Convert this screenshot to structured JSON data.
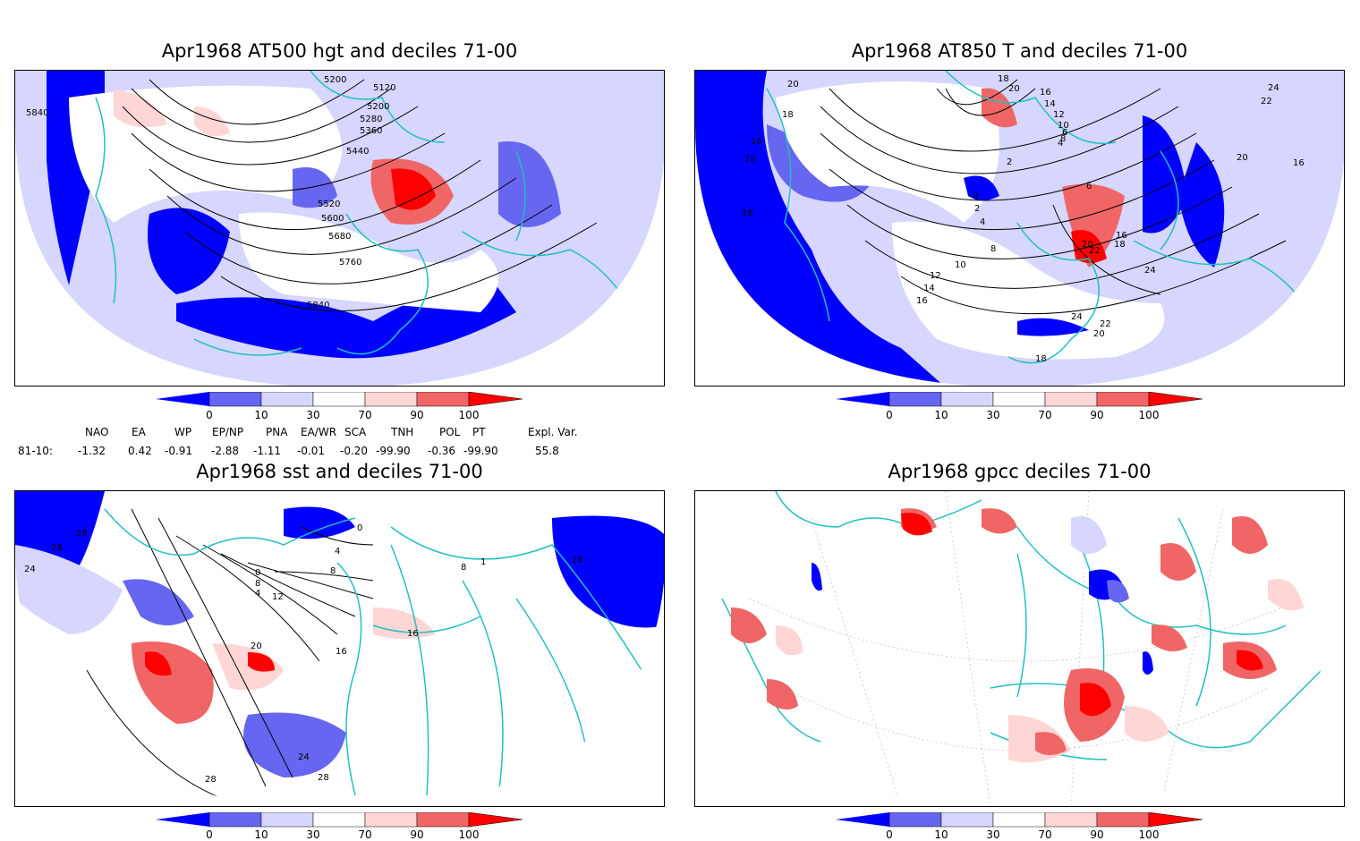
{
  "panels": [
    {
      "id": "hgt",
      "title": "Apr1968 AT500 hgt and deciles 71-00",
      "contour_labels": [
        "5840",
        "5200",
        "5120",
        "5200",
        "5280",
        "5360",
        "5440",
        "5520",
        "5600",
        "5680",
        "5760",
        "5840"
      ]
    },
    {
      "id": "t850",
      "title": "Apr1968 AT850 T and deciles 71-00",
      "contour_labels": [
        "20",
        "18",
        "16",
        "18",
        "16",
        "18",
        "20",
        "16",
        "14",
        "12",
        "10",
        "8",
        "6",
        "4",
        "2",
        "0",
        "2",
        "4",
        "6",
        "8",
        "10",
        "12",
        "14",
        "16",
        "16",
        "18",
        "20",
        "22",
        "24",
        "20",
        "22",
        "24",
        "18",
        "16",
        "20",
        "22",
        "24"
      ]
    },
    {
      "id": "sst",
      "title": "Apr1968 sst and deciles 71-00",
      "contour_labels": [
        "28",
        "24",
        "28",
        "0",
        "4",
        "8",
        "0",
        "4",
        "8",
        "12",
        "16",
        "20",
        "24",
        "28",
        "28",
        "1",
        "8",
        "16",
        "28"
      ]
    },
    {
      "id": "gpcc",
      "title": "Apr1968 gpcc deciles 71-00",
      "contour_labels": []
    }
  ],
  "colorbar": {
    "tick_labels": [
      "0",
      "10",
      "30",
      "70",
      "90",
      "100"
    ],
    "colors": [
      "#0000ff",
      "#6666f0",
      "#d6d6ff",
      "#ffffff",
      "#ffd6d6",
      "#f06666",
      "#ff0000"
    ]
  },
  "indices": {
    "row_label": "81-10:",
    "headers": [
      "NAO",
      "EA",
      "WP",
      "EP/NP",
      "PNA",
      "EA/WR",
      "SCA",
      "TNH",
      "POL",
      "PT",
      "Expl. Var."
    ],
    "values": [
      "-1.32",
      "0.42",
      "-0.91",
      "-2.88",
      "-1.11",
      "-0.01",
      "-0.20",
      "-99.90",
      "-0.36",
      "-99.90",
      "55.8"
    ]
  },
  "colors": {
    "coastline": "#20c0c0",
    "contour": "#000000",
    "frame": "#000000"
  }
}
